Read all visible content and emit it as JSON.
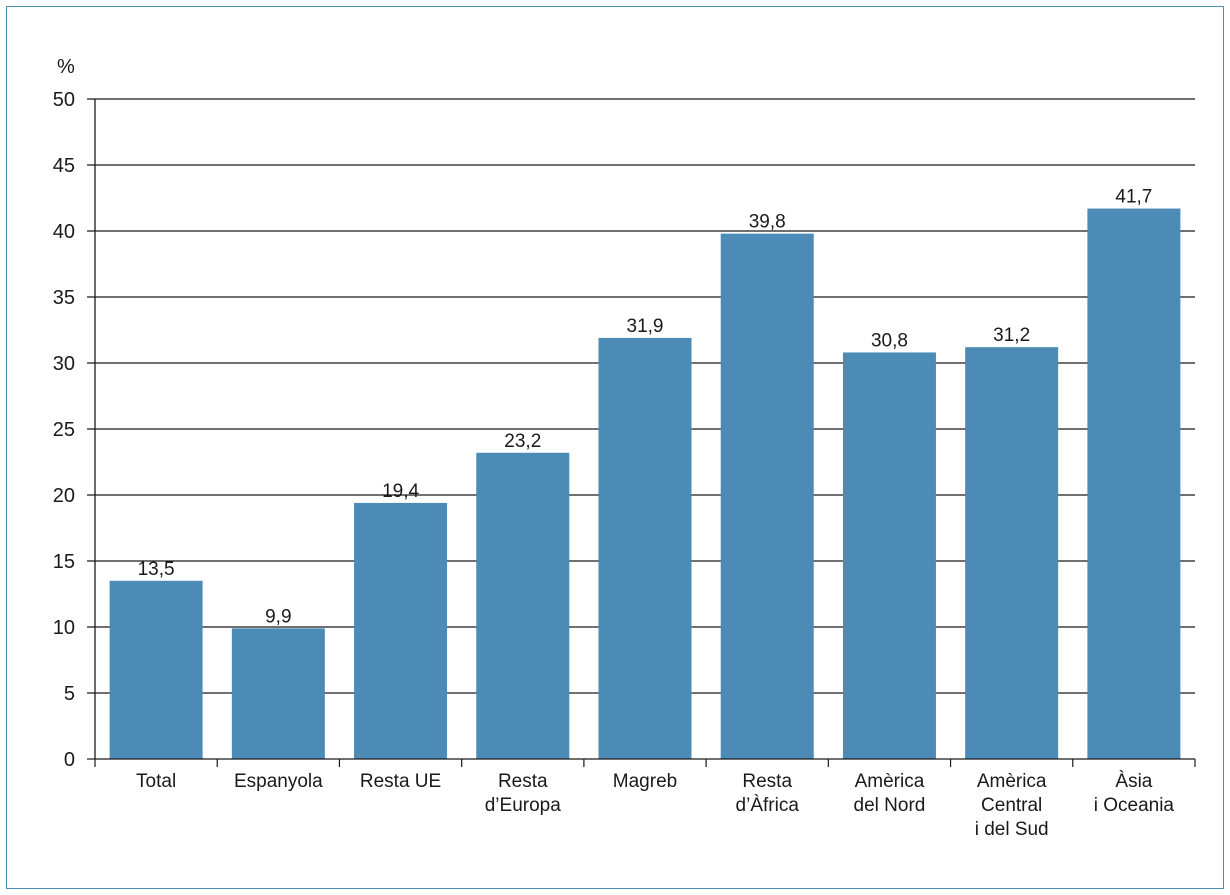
{
  "chart_data": {
    "type": "bar",
    "unit_label": "%",
    "ylim": [
      0,
      50
    ],
    "y_ticks": [
      "0",
      "5",
      "10",
      "15",
      "20",
      "25",
      "30",
      "35",
      "40",
      "45",
      "50"
    ],
    "y_tick_values": [
      0,
      5,
      10,
      15,
      20,
      25,
      30,
      35,
      40,
      45,
      50
    ],
    "grid": true,
    "bar_color": "#4b8bb6",
    "categories": [
      [
        "Total"
      ],
      [
        "Espanyola"
      ],
      [
        "Resta UE"
      ],
      [
        "Resta",
        "d’Europa"
      ],
      [
        "Magreb"
      ],
      [
        "Resta",
        "d’Àfrica"
      ],
      [
        "Amèrica",
        "del Nord"
      ],
      [
        "Amèrica",
        "Central",
        "i del Sud"
      ],
      [
        "Àsia",
        "i Oceania"
      ]
    ],
    "values": [
      13.5,
      9.9,
      19.4,
      23.2,
      31.9,
      39.8,
      30.8,
      31.2,
      41.7
    ],
    "value_labels": [
      "13,5",
      "9,9",
      "19,4",
      "23,2",
      "31,9",
      "39,8",
      "30,8",
      "31,2",
      "41,7"
    ]
  }
}
